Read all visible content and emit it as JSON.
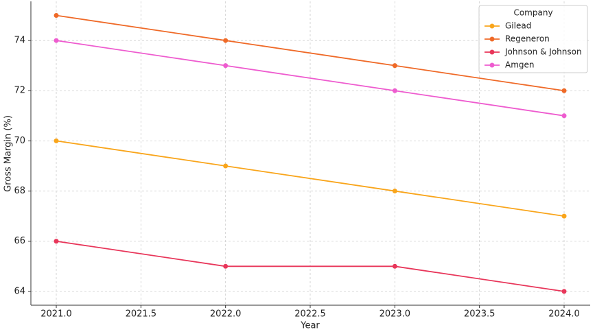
{
  "chart_data": {
    "type": "line",
    "x_label": "Year",
    "y_label": "Gross Margin (%)",
    "x": [
      2021,
      2022,
      2023,
      2024
    ],
    "series": [
      {
        "name": "Gilead",
        "color": "#f9a51b",
        "values": [
          70,
          69,
          68,
          67
        ]
      },
      {
        "name": "Regeneron",
        "color": "#ef6a28",
        "values": [
          75,
          74,
          73,
          72
        ]
      },
      {
        "name": "Johnson & Johnson",
        "color": "#e8365a",
        "values": [
          66,
          65,
          65,
          64
        ]
      },
      {
        "name": "Amgen",
        "color": "#ee5ccf",
        "values": [
          74,
          73,
          72,
          71
        ]
      }
    ],
    "xlim": [
      2020.85,
      2024.154
    ],
    "xticks": [
      {
        "value": 2021,
        "label": "2021.0"
      },
      2021.5,
      {
        "value": 2022,
        "label": "2022.0"
      },
      2022.5,
      {
        "value": 2023,
        "label": "2023.0"
      },
      2023.5,
      {
        "value": 2024,
        "label": "2024.0"
      }
    ],
    "ylim": [
      63.45,
      75.56
    ],
    "yticks": [
      64,
      66,
      68,
      70,
      72,
      74
    ],
    "grid": true,
    "legend_title": "Company",
    "legend_position": "upper right"
  }
}
